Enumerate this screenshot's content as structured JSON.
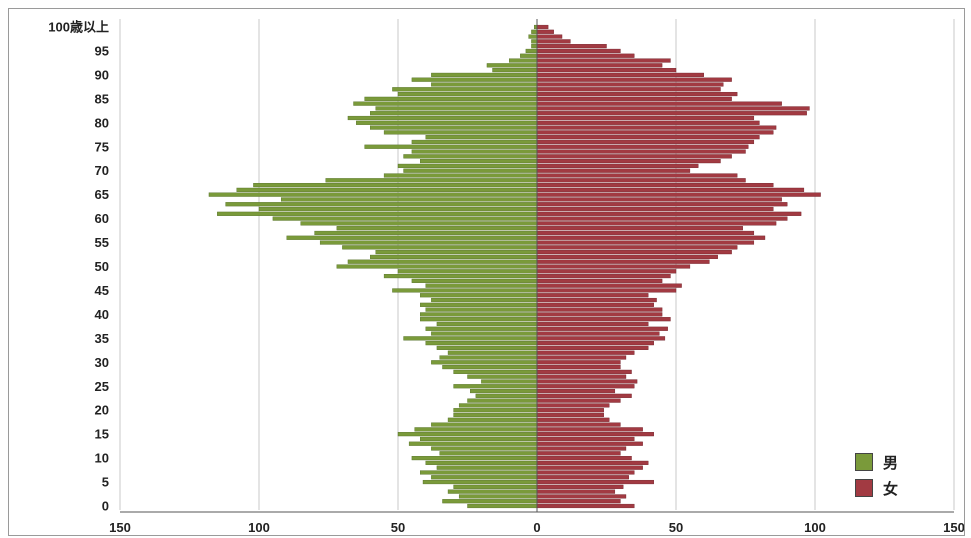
{
  "chart_data": {
    "type": "bar",
    "orientation": "horizontal-population-pyramid",
    "title": "",
    "xlabel": "",
    "ylabel": "",
    "xlim": [
      -150,
      150
    ],
    "x_tick_values": [
      -150,
      -100,
      -50,
      0,
      50,
      100,
      150
    ],
    "x_tick_labels": [
      "150",
      "100",
      "50",
      "0",
      "50",
      "100",
      "150"
    ],
    "y_tick_ages": [
      0,
      5,
      10,
      15,
      20,
      25,
      30,
      35,
      40,
      45,
      50,
      55,
      60,
      65,
      70,
      75,
      80,
      85,
      90,
      95,
      100
    ],
    "y_tick_labels": [
      "0",
      "5",
      "10",
      "15",
      "20",
      "25",
      "30",
      "35",
      "40",
      "45",
      "50",
      "55",
      "60",
      "65",
      "70",
      "75",
      "80",
      "85",
      "90",
      "95",
      "100歳以上"
    ],
    "grid": "vertical",
    "legend_position": "bottom-right",
    "categories": [
      "0",
      "1",
      "2",
      "3",
      "4",
      "5",
      "6",
      "7",
      "8",
      "9",
      "10",
      "11",
      "12",
      "13",
      "14",
      "15",
      "16",
      "17",
      "18",
      "19",
      "20",
      "21",
      "22",
      "23",
      "24",
      "25",
      "26",
      "27",
      "28",
      "29",
      "30",
      "31",
      "32",
      "33",
      "34",
      "35",
      "36",
      "37",
      "38",
      "39",
      "40",
      "41",
      "42",
      "43",
      "44",
      "45",
      "46",
      "47",
      "48",
      "49",
      "50",
      "51",
      "52",
      "53",
      "54",
      "55",
      "56",
      "57",
      "58",
      "59",
      "60",
      "61",
      "62",
      "63",
      "64",
      "65",
      "66",
      "67",
      "68",
      "69",
      "70",
      "71",
      "72",
      "73",
      "74",
      "75",
      "76",
      "77",
      "78",
      "79",
      "80",
      "81",
      "82",
      "83",
      "84",
      "85",
      "86",
      "87",
      "88",
      "89",
      "90",
      "91",
      "92",
      "93",
      "94",
      "95",
      "96",
      "97",
      "98",
      "99",
      "100歳以上"
    ],
    "series": [
      {
        "name": "男",
        "color": "#7a9a3a",
        "values": [
          25,
          34,
          28,
          32,
          30,
          41,
          38,
          42,
          36,
          40,
          45,
          35,
          38,
          46,
          42,
          50,
          44,
          38,
          32,
          30,
          30,
          28,
          25,
          22,
          24,
          30,
          20,
          25,
          30,
          34,
          38,
          35,
          32,
          36,
          40,
          48,
          38,
          40,
          36,
          42,
          42,
          40,
          42,
          38,
          42,
          52,
          40,
          45,
          55,
          50,
          72,
          68,
          60,
          58,
          70,
          78,
          90,
          80,
          72,
          85,
          95,
          115,
          100,
          112,
          92,
          118,
          108,
          102,
          76,
          55,
          48,
          50,
          42,
          48,
          45,
          62,
          45,
          40,
          55,
          60,
          65,
          68,
          60,
          58,
          66,
          62,
          50,
          52,
          38,
          45,
          38,
          16,
          18,
          10,
          6,
          4,
          2,
          2,
          3,
          2,
          1
        ]
      },
      {
        "name": "女",
        "color": "#a23a42",
        "values": [
          35,
          30,
          32,
          28,
          31,
          42,
          33,
          35,
          38,
          40,
          34,
          30,
          32,
          38,
          35,
          42,
          38,
          30,
          26,
          24,
          24,
          26,
          30,
          34,
          28,
          35,
          36,
          32,
          34,
          30,
          30,
          32,
          35,
          40,
          42,
          46,
          44,
          47,
          40,
          48,
          45,
          45,
          42,
          43,
          40,
          50,
          52,
          45,
          48,
          50,
          55,
          62,
          65,
          70,
          72,
          78,
          82,
          78,
          74,
          86,
          90,
          95,
          85,
          90,
          88,
          102,
          96,
          85,
          75,
          72,
          55,
          58,
          66,
          70,
          75,
          76,
          78,
          80,
          85,
          86,
          80,
          78,
          97,
          98,
          88,
          70,
          72,
          66,
          67,
          70,
          60,
          50,
          45,
          48,
          35,
          30,
          25,
          12,
          9,
          6,
          4
        ]
      }
    ]
  },
  "legend": [
    {
      "label": "男",
      "color": "#7a9a3a"
    },
    {
      "label": "女",
      "color": "#a23a42"
    }
  ]
}
